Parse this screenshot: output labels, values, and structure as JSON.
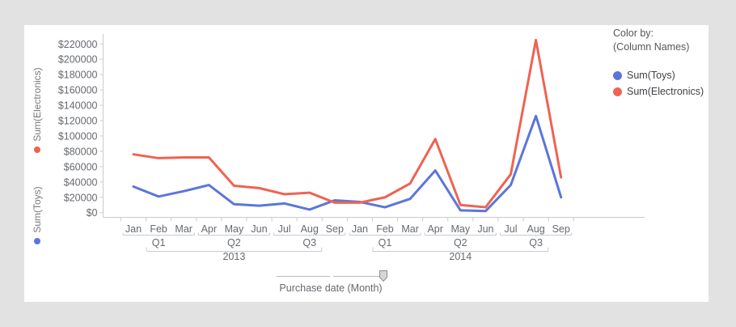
{
  "window": {
    "background": "#e2e2e2",
    "panel_background": "#ffffff"
  },
  "left_axis": {
    "electronics_label": "Sum(Electronics)",
    "toys_label": "Sum(Toys)"
  },
  "legend": {
    "title": "Color by:",
    "subtitle": "(Column Names)",
    "items": [
      {
        "label": "Sum(Toys)",
        "color": "#5b76db"
      },
      {
        "label": "Sum(Electronics)",
        "color": "#ee6352"
      }
    ]
  },
  "slider": {
    "label": "Purchase date (Month)"
  },
  "chart_data": {
    "type": "line",
    "x": [
      "Jan",
      "Feb",
      "Mar",
      "Apr",
      "May",
      "Jun",
      "Jul",
      "Aug",
      "Sep",
      "Jan",
      "Feb",
      "Mar",
      "Apr",
      "May",
      "Jun",
      "Jul",
      "Aug",
      "Sep"
    ],
    "x_hierarchy": {
      "quarters": [
        {
          "label": "Q1",
          "from": 0,
          "to": 2
        },
        {
          "label": "Q2",
          "from": 3,
          "to": 5
        },
        {
          "label": "Q3",
          "from": 6,
          "to": 8
        },
        {
          "label": "Q1",
          "from": 9,
          "to": 11
        },
        {
          "label": "Q2",
          "from": 12,
          "to": 14
        },
        {
          "label": "Q3",
          "from": 15,
          "to": 17
        }
      ],
      "years": [
        {
          "label": "2013",
          "from_quarter": 0,
          "to_quarter": 2,
          "from": 0,
          "to": 8
        },
        {
          "label": "2014",
          "from_quarter": 3,
          "to_quarter": 5,
          "from": 9,
          "to": 17
        }
      ]
    },
    "y_tick_labels": [
      "$0",
      "$20000",
      "$40000",
      "$60000",
      "$80000",
      "$100000",
      "$120000",
      "$140000",
      "$160000",
      "$180000",
      "$200000",
      "$220000"
    ],
    "ylim": [
      0,
      220000
    ],
    "ytick_step": 20000,
    "xlabel": "Purchase date (Month)",
    "ylabel_series": [
      "Sum(Electronics)",
      "Sum(Toys)"
    ],
    "legend_position": "top-right",
    "grid": false,
    "series": [
      {
        "name": "Sum(Toys)",
        "color": "#5b76db",
        "values": [
          34000,
          21000,
          28000,
          36000,
          11000,
          9000,
          12000,
          4000,
          16000,
          14000,
          7000,
          18000,
          55000,
          3000,
          2000,
          36000,
          126000,
          20000
        ]
      },
      {
        "name": "Sum(Electronics)",
        "color": "#ee6352",
        "values": [
          76000,
          71000,
          72000,
          72000,
          35000,
          32000,
          24000,
          26000,
          13000,
          13000,
          20000,
          38000,
          96000,
          10000,
          7000,
          50000,
          225000,
          46000
        ]
      }
    ]
  }
}
